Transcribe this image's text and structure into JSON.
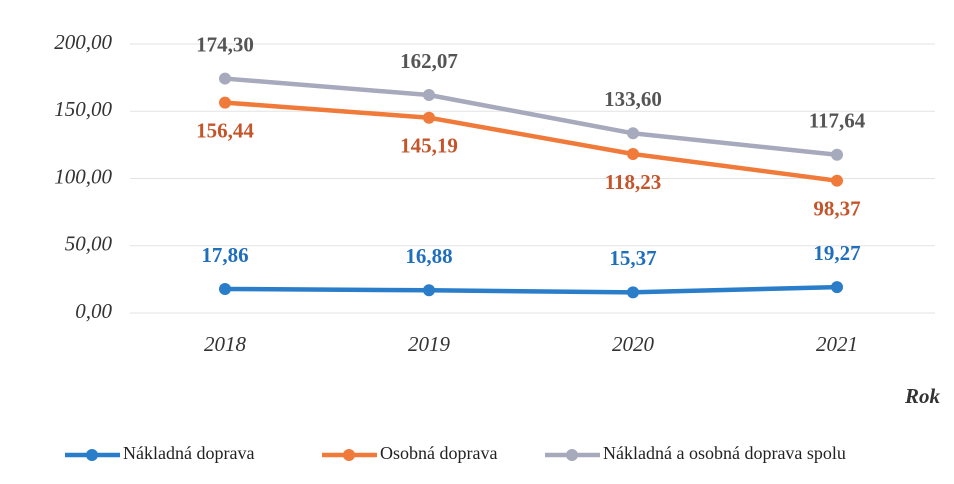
{
  "chart_data": {
    "type": "line",
    "x_label": "Rok",
    "categories": [
      "2018",
      "2019",
      "2020",
      "2021"
    ],
    "series": [
      {
        "name": "Nákladná doprava",
        "color": "#2a7dc9",
        "label_color": "#1f6fbd",
        "label_position": [
          "above",
          "above",
          "above",
          "above"
        ],
        "values": [
          17.86,
          16.88,
          15.37,
          19.27
        ],
        "value_labels": [
          "17,86",
          "16,88",
          "15,37",
          "19,27"
        ]
      },
      {
        "name": "Osobná doprava",
        "color": "#ef7a3a",
        "label_color": "#c4552a",
        "label_position": [
          "below",
          "below",
          "below",
          "below"
        ],
        "values": [
          156.44,
          145.19,
          118.23,
          98.37
        ],
        "value_labels": [
          "156,44",
          "145,19",
          "118,23",
          "98,37"
        ]
      },
      {
        "name": "Nákladná a osobná doprava spolu",
        "color": "#a7a9bc",
        "label_color": "#555555",
        "label_position": [
          "above",
          "above",
          "above",
          "above"
        ],
        "values": [
          174.3,
          162.07,
          133.6,
          117.64
        ],
        "value_labels": [
          "174,30",
          "162,07",
          "133,60",
          "117,64"
        ]
      }
    ],
    "ylim": [
      0,
      200
    ],
    "yticks": [
      {
        "value": 0,
        "label": "0,00"
      },
      {
        "value": 50,
        "label": "50,00"
      },
      {
        "value": 100,
        "label": "100,00"
      },
      {
        "value": 150,
        "label": "150,00"
      },
      {
        "value": 200,
        "label": "200,00"
      }
    ],
    "grid": true,
    "legend": "bottom"
  }
}
